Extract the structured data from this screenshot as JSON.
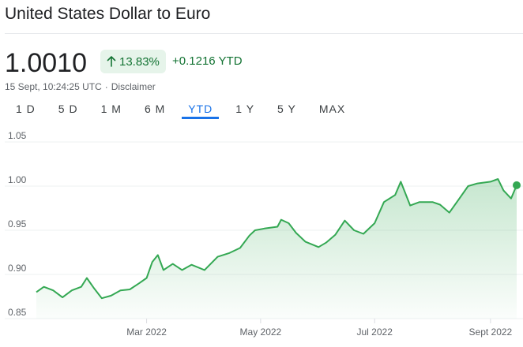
{
  "header": {
    "title": "United States Dollar to Euro"
  },
  "quote": {
    "price": "1.0010",
    "percent_change": "13.83%",
    "abs_change": "+0.1216 YTD",
    "timestamp": "15 Sept, 10:24:25 UTC",
    "separator": "·",
    "disclaimer": "Disclaimer",
    "arrow_icon": "arrow-up-icon"
  },
  "ranges": {
    "items": [
      "1 D",
      "5 D",
      "1 M",
      "6 M",
      "YTD",
      "1 Y",
      "5 Y",
      "MAX"
    ],
    "active": "YTD"
  },
  "colors": {
    "line": "#34a853",
    "positive_text": "#137333",
    "badge_bg": "#e6f4ea",
    "active_tab": "#1a73e8"
  },
  "chart_data": {
    "type": "area",
    "ylim": [
      0.85,
      1.05
    ],
    "yticks": [
      "0.85",
      "0.90",
      "0.95",
      "1.00",
      "1.05"
    ],
    "xtick_labels": [
      "Mar 2022",
      "May 2022",
      "Jul 2022",
      "Sept 2022"
    ],
    "xtick_dates": [
      "2022-03-01",
      "2022-05-01",
      "2022-07-01",
      "2022-09-01"
    ],
    "x": [
      "2022-01-01",
      "2022-01-05",
      "2022-01-10",
      "2022-01-15",
      "2022-01-20",
      "2022-01-25",
      "2022-01-28",
      "2022-02-01",
      "2022-02-05",
      "2022-02-10",
      "2022-02-15",
      "2022-02-20",
      "2022-02-25",
      "2022-03-01",
      "2022-03-04",
      "2022-03-07",
      "2022-03-10",
      "2022-03-15",
      "2022-03-20",
      "2022-03-25",
      "2022-04-01",
      "2022-04-08",
      "2022-04-14",
      "2022-04-20",
      "2022-04-25",
      "2022-04-28",
      "2022-05-03",
      "2022-05-10",
      "2022-05-12",
      "2022-05-16",
      "2022-05-20",
      "2022-05-25",
      "2022-06-01",
      "2022-06-05",
      "2022-06-10",
      "2022-06-15",
      "2022-06-20",
      "2022-06-25",
      "2022-07-01",
      "2022-07-06",
      "2022-07-12",
      "2022-07-15",
      "2022-07-20",
      "2022-07-25",
      "2022-08-01",
      "2022-08-05",
      "2022-08-10",
      "2022-08-15",
      "2022-08-20",
      "2022-08-25",
      "2022-09-01",
      "2022-09-05",
      "2022-09-08",
      "2022-09-12",
      "2022-09-15"
    ],
    "series": [
      {
        "values": [
          0.88,
          0.886,
          0.882,
          0.874,
          0.882,
          0.886,
          0.896,
          0.884,
          0.873,
          0.876,
          0.882,
          0.883,
          0.89,
          0.896,
          0.914,
          0.922,
          0.905,
          0.912,
          0.905,
          0.911,
          0.905,
          0.92,
          0.924,
          0.93,
          0.944,
          0.95,
          0.952,
          0.954,
          0.962,
          0.958,
          0.947,
          0.937,
          0.931,
          0.936,
          0.945,
          0.961,
          0.95,
          0.946,
          0.958,
          0.982,
          0.99,
          1.005,
          0.978,
          0.982,
          0.982,
          0.979,
          0.97,
          0.985,
          1.0,
          1.003,
          1.005,
          1.008,
          0.995,
          0.986,
          1.001
        ]
      }
    ]
  }
}
